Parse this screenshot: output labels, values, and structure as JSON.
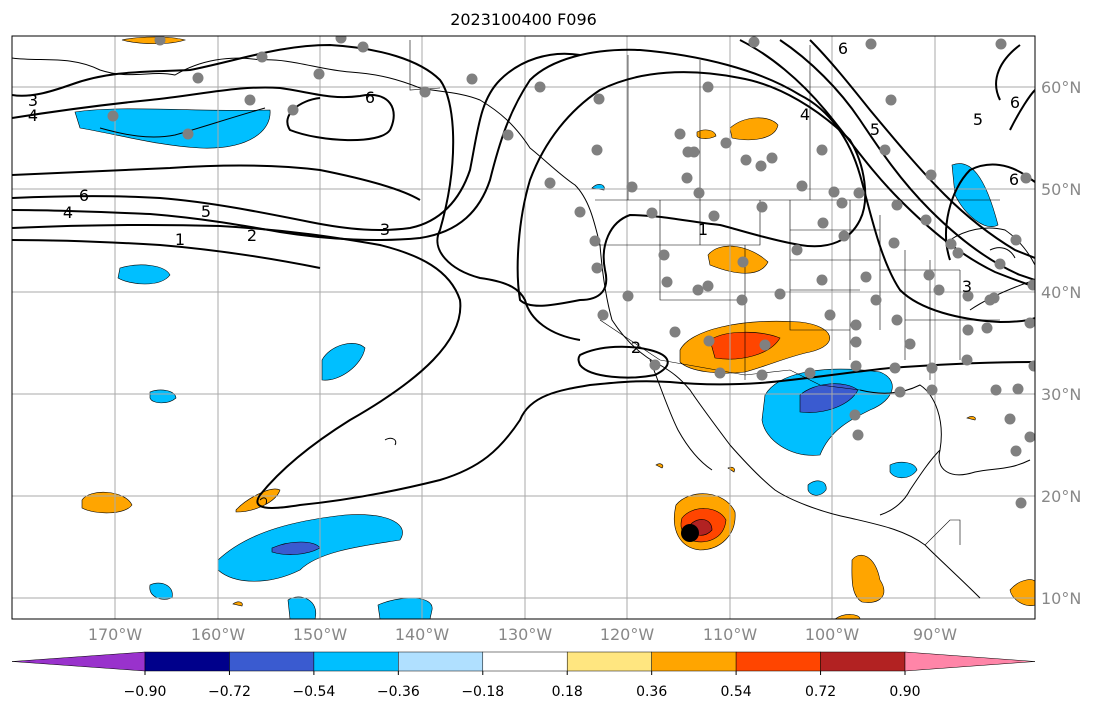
{
  "title": "2023100400 F096",
  "lon_labels": [
    "170°W",
    "160°W",
    "150°W",
    "140°W",
    "130°W",
    "120°W",
    "110°W",
    "100°W",
    "90°W"
  ],
  "lat_labels": [
    "60°N",
    "50°N",
    "40°N",
    "30°N",
    "20°N",
    "10°N"
  ],
  "contour_labels": [
    "3",
    "4",
    "6",
    "4",
    "5",
    "1",
    "2",
    "3",
    "6",
    "1",
    "2",
    "4",
    "5",
    "5",
    "6",
    "6",
    "6",
    "3"
  ],
  "colorbar": {
    "tick_labels": [
      "−0.90",
      "−0.72",
      "−0.54",
      "−0.36",
      "−0.18",
      "0.18",
      "0.36",
      "0.54",
      "0.72",
      "0.90"
    ],
    "colors": [
      "#9932cc",
      "#00008b",
      "#3a5bd0",
      "#00bfff",
      "#b0e0ff",
      "#ffffff",
      "#ffe680",
      "#ffa500",
      "#ff4500",
      "#b22222",
      "#ff85a8"
    ]
  },
  "colors": {
    "grid": "#aaaaaa",
    "station": "#808080",
    "coast": "#000000",
    "axis_label": "#888888"
  }
}
